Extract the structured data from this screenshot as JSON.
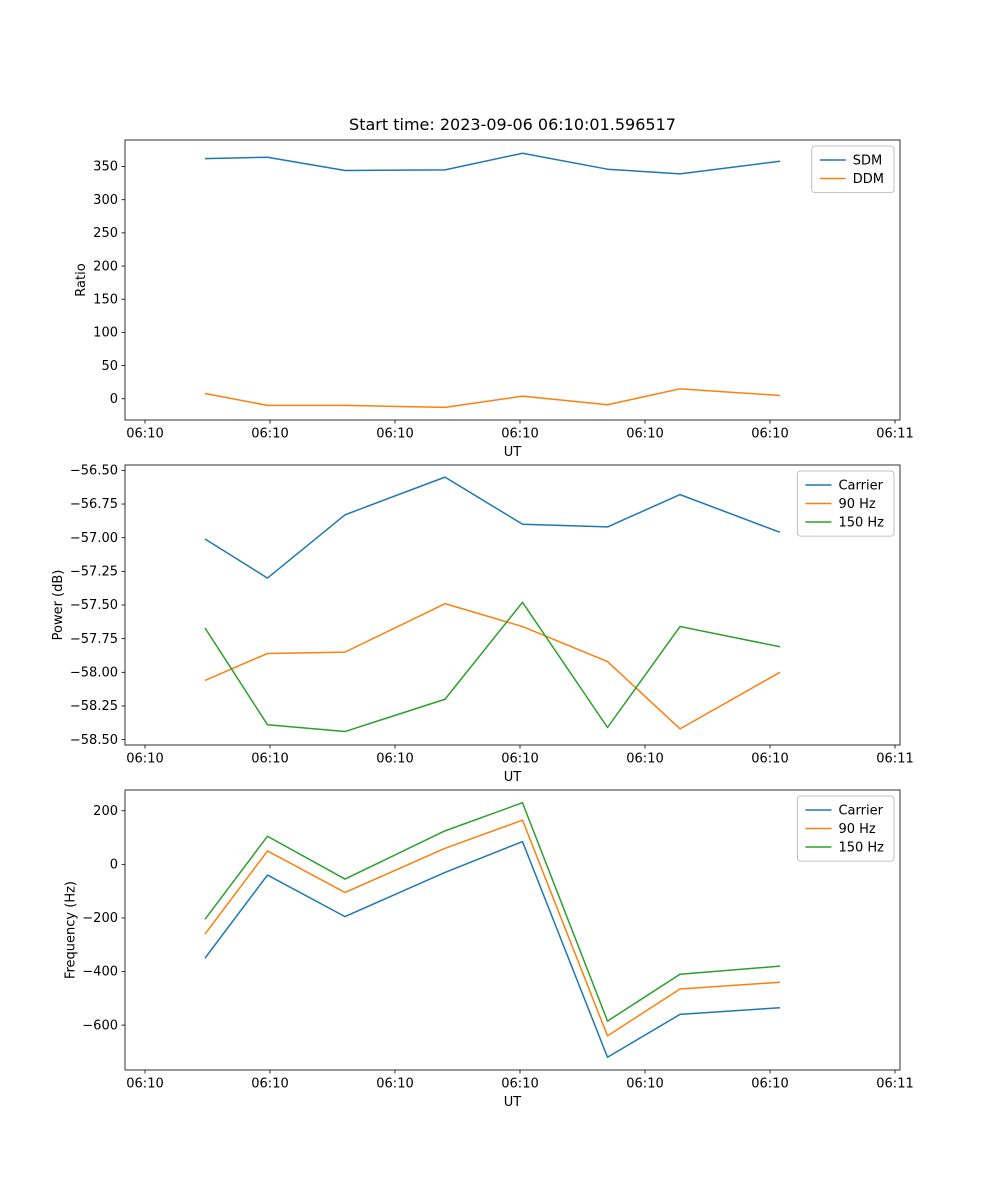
{
  "figure": {
    "title": "Start time: 2023-09-06 06:10:01.596517",
    "background": "#ffffff"
  },
  "chart_data": [
    {
      "id": "ratio",
      "type": "line",
      "title": "Start time: 2023-09-06 06:10:01.596517",
      "xlabel": "UT",
      "ylabel": "Ratio",
      "grid": false,
      "legend_position": "upper right",
      "xlim": [
        -1.6,
        60.4
      ],
      "ylim": [
        -32,
        390
      ],
      "x_ticks": [
        0,
        10,
        20,
        30,
        40,
        50,
        60
      ],
      "x_tick_labels": [
        "06:10",
        "06:10",
        "06:10",
        "06:10",
        "06:10",
        "06:10",
        "06:11"
      ],
      "y_ticks": [
        0,
        50,
        100,
        150,
        200,
        250,
        300,
        350
      ],
      "y_tick_labels": [
        "0",
        "50",
        "100",
        "150",
        "200",
        "250",
        "300",
        "350"
      ],
      "x": [
        4.8,
        9.8,
        16.0,
        24.0,
        30.2,
        37.0,
        42.8,
        50.8
      ],
      "series": [
        {
          "name": "SDM",
          "color": "#1f77b4",
          "values": [
            362,
            364,
            344,
            345,
            370,
            346,
            339,
            358
          ]
        },
        {
          "name": "DDM",
          "color": "#ff7f0e",
          "values": [
            8,
            -10,
            -10,
            -13,
            4,
            -9,
            15,
            5
          ]
        }
      ]
    },
    {
      "id": "power",
      "type": "line",
      "title": "",
      "xlabel": "UT",
      "ylabel": "Power (dB)",
      "grid": false,
      "legend_position": "upper right",
      "xlim": [
        -1.6,
        60.4
      ],
      "ylim": [
        -58.54,
        -56.46
      ],
      "x_ticks": [
        0,
        10,
        20,
        30,
        40,
        50,
        60
      ],
      "x_tick_labels": [
        "06:10",
        "06:10",
        "06:10",
        "06:10",
        "06:10",
        "06:10",
        "06:11"
      ],
      "y_ticks": [
        -58.5,
        -58.25,
        -58.0,
        -57.75,
        -57.5,
        -57.25,
        -57.0,
        -56.75,
        -56.5
      ],
      "y_tick_labels": [
        "−58.50",
        "−58.25",
        "−58.00",
        "−57.75",
        "−57.50",
        "−57.25",
        "−57.00",
        "−56.75",
        "−56.50"
      ],
      "x": [
        4.8,
        9.8,
        16.0,
        24.0,
        30.2,
        37.0,
        42.8,
        50.8
      ],
      "series": [
        {
          "name": "Carrier",
          "color": "#1f77b4",
          "values": [
            -57.01,
            -57.3,
            -56.83,
            -56.55,
            -56.9,
            -56.92,
            -56.68,
            -56.96
          ]
        },
        {
          "name": "90 Hz",
          "color": "#ff7f0e",
          "values": [
            -58.06,
            -57.86,
            -57.85,
            -57.49,
            -57.66,
            -57.92,
            -58.42,
            -58.0
          ]
        },
        {
          "name": "150 Hz",
          "color": "#2ca02c",
          "values": [
            -57.67,
            -58.39,
            -58.44,
            -58.2,
            -57.48,
            -58.41,
            -57.66,
            -57.81
          ]
        }
      ]
    },
    {
      "id": "frequency",
      "type": "line",
      "title": "",
      "xlabel": "UT",
      "ylabel": "Frequency (Hz)",
      "grid": false,
      "legend_position": "upper right",
      "xlim": [
        -1.6,
        60.4
      ],
      "ylim": [
        -767.5,
        277.5
      ],
      "x_ticks": [
        0,
        10,
        20,
        30,
        40,
        50,
        60
      ],
      "x_tick_labels": [
        "06:10",
        "06:10",
        "06:10",
        "06:10",
        "06:10",
        "06:10",
        "06:11"
      ],
      "y_ticks": [
        -600,
        -400,
        -200,
        0,
        200
      ],
      "y_tick_labels": [
        "−600",
        "−400",
        "−200",
        "0",
        "200"
      ],
      "x": [
        4.8,
        9.8,
        16.0,
        24.0,
        30.2,
        37.0,
        42.8,
        50.8
      ],
      "series": [
        {
          "name": "Carrier",
          "color": "#1f77b4",
          "values": [
            -350,
            -40,
            -195,
            -30,
            85,
            -720,
            -560,
            -535
          ]
        },
        {
          "name": "90 Hz",
          "color": "#ff7f0e",
          "values": [
            -260,
            50,
            -105,
            60,
            165,
            -640,
            -465,
            -440
          ]
        },
        {
          "name": "150 Hz",
          "color": "#2ca02c",
          "values": [
            -205,
            105,
            -55,
            125,
            230,
            -585,
            -410,
            -380
          ]
        }
      ]
    }
  ]
}
